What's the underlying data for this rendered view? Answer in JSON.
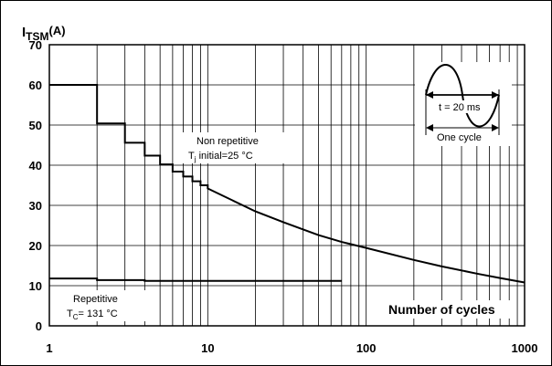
{
  "chart_data": {
    "type": "line",
    "xscale": "log",
    "xlim": [
      1,
      1000
    ],
    "ylim": [
      0,
      70
    ],
    "grid": true,
    "ylabel": {
      "main": "I",
      "sub": "TSM",
      "unit": "(A)"
    },
    "xlabel": "Number of cycles",
    "x_ticks": [
      1,
      10,
      100,
      1000
    ],
    "y_ticks": [
      0,
      10,
      20,
      30,
      40,
      50,
      60,
      70
    ],
    "series": [
      {
        "step": true,
        "x": [
          1,
          2,
          3,
          4,
          5,
          6,
          7,
          8,
          9,
          10,
          20,
          30,
          50,
          70,
          100,
          200,
          300,
          500,
          700,
          1000
        ],
        "y": [
          60,
          50.4,
          45.6,
          42.4,
          40.2,
          38.4,
          37.2,
          36,
          35,
          34.2,
          28.5,
          25.8,
          22.6,
          20.9,
          19.4,
          16.4,
          14.8,
          13,
          11.9,
          10.8
        ]
      },
      {
        "step": true,
        "x": [
          1,
          2,
          4,
          70
        ],
        "y": [
          11.8,
          11.4,
          11.2,
          11.2
        ]
      }
    ],
    "annotations": {
      "non_repetitive": {
        "line1": "Non repetitive",
        "line2_pre": "T",
        "line2_sub": "j",
        "line2_post": " initial=25 °C"
      },
      "repetitive": {
        "line1": "Repetitive",
        "line2_pre": "T",
        "line2_sub": "C",
        "line2_post": "= 131 °C"
      },
      "inset": {
        "period_label": "t = 20 ms",
        "cycle_label": "One cycle"
      }
    }
  }
}
